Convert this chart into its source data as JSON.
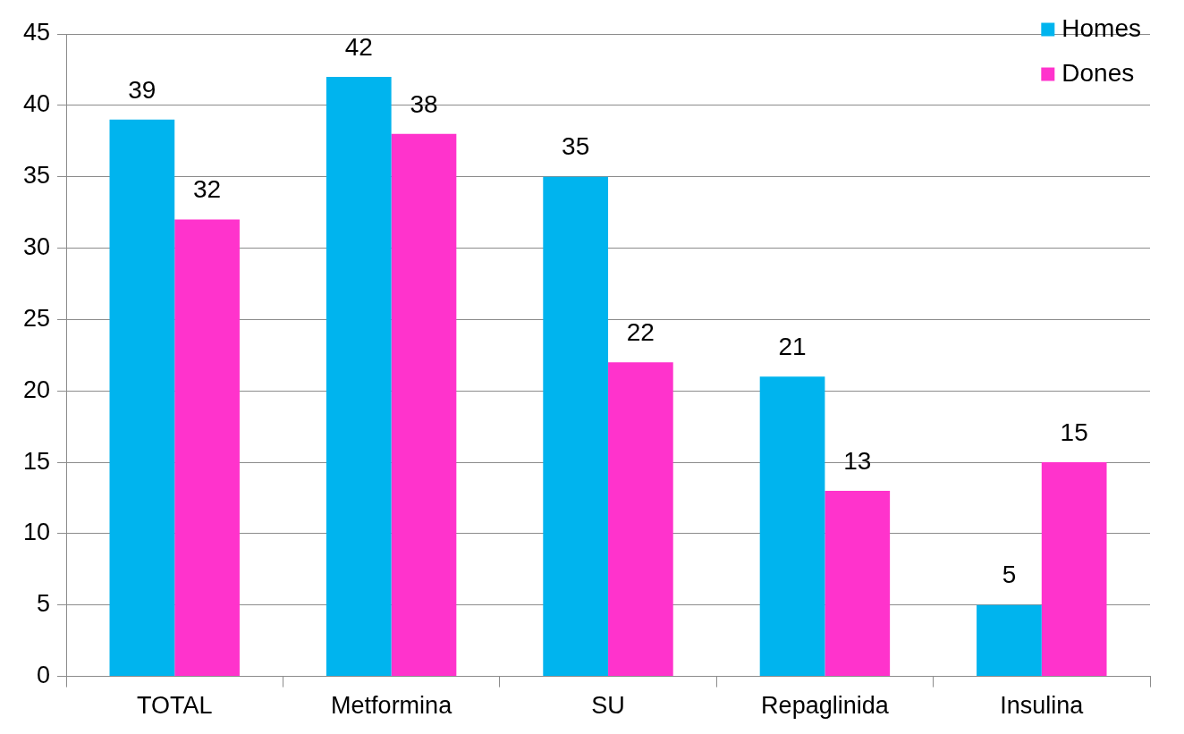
{
  "chart_data": {
    "type": "bar",
    "categories": [
      "TOTAL",
      "Metformina",
      "SU",
      "Repaglinida",
      "Insulina"
    ],
    "series": [
      {
        "name": "Homes",
        "color": "#00b4ee",
        "values": [
          39,
          42,
          35,
          21,
          5
        ]
      },
      {
        "name": "Dones",
        "color": "#ff33cc",
        "values": [
          32,
          38,
          22,
          13,
          15
        ]
      }
    ],
    "ylim": [
      0,
      45
    ],
    "yticks": [
      0,
      5,
      10,
      15,
      20,
      25,
      30,
      35,
      40,
      45
    ],
    "grid": "y",
    "legend": "top right",
    "data_labels": true
  }
}
